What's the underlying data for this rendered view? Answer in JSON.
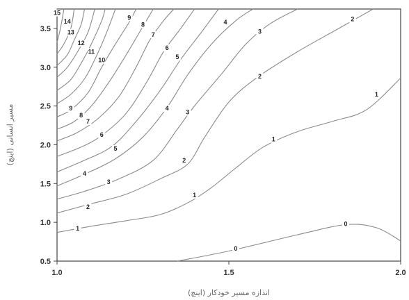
{
  "chart_data": {
    "type": "contour",
    "xlabel": "اندازه مسیر خودکار (اینچ)",
    "ylabel": "مسیر انسانی (اینچ)",
    "xlim": [
      1.0,
      2.0
    ],
    "ylim": [
      0.5,
      3.75
    ],
    "xticks": [
      "1.0",
      "1.5",
      "2.0"
    ],
    "yticks": [
      "0.5",
      "1.0",
      "1.5",
      "2.0",
      "2.5",
      "3.0",
      "3.5"
    ],
    "contours": [
      {
        "level": 0,
        "points": [
          [
            1.35,
            0.5
          ],
          [
            1.5,
            0.63
          ],
          [
            1.7,
            0.84
          ],
          [
            1.84,
            0.97
          ],
          [
            1.93,
            0.93
          ],
          [
            2.0,
            0.76
          ]
        ],
        "label_at": [
          [
            1.52,
            0.66
          ],
          [
            1.84,
            0.98
          ]
        ]
      },
      {
        "level": 1,
        "points": [
          [
            1.0,
            0.87
          ],
          [
            1.1,
            0.95
          ],
          [
            1.2,
            1.02
          ],
          [
            1.3,
            1.1
          ],
          [
            1.38,
            1.25
          ],
          [
            1.45,
            1.45
          ],
          [
            1.52,
            1.7
          ],
          [
            1.6,
            1.97
          ],
          [
            1.7,
            2.17
          ],
          [
            1.8,
            2.3
          ],
          [
            1.9,
            2.45
          ],
          [
            2.0,
            2.86
          ]
        ],
        "label_at": [
          [
            1.06,
            0.92
          ],
          [
            1.4,
            1.35
          ],
          [
            1.63,
            2.07
          ],
          [
            1.93,
            2.65
          ]
        ]
      },
      {
        "level": 2,
        "points": [
          [
            1.0,
            1.12
          ],
          [
            1.1,
            1.24
          ],
          [
            1.2,
            1.36
          ],
          [
            1.3,
            1.56
          ],
          [
            1.38,
            1.75
          ],
          [
            1.43,
            2.1
          ],
          [
            1.5,
            2.55
          ],
          [
            1.58,
            2.86
          ],
          [
            1.7,
            3.2
          ],
          [
            1.82,
            3.5
          ],
          [
            1.92,
            3.75
          ]
        ],
        "label_at": [
          [
            1.09,
            1.2
          ],
          [
            1.37,
            1.8
          ],
          [
            1.59,
            2.88
          ],
          [
            1.86,
            3.62
          ]
        ]
      },
      {
        "level": 3,
        "points": [
          [
            1.0,
            1.3
          ],
          [
            1.08,
            1.4
          ],
          [
            1.18,
            1.56
          ],
          [
            1.28,
            1.8
          ],
          [
            1.35,
            2.2
          ],
          [
            1.4,
            2.5
          ],
          [
            1.48,
            2.92
          ],
          [
            1.55,
            3.3
          ],
          [
            1.62,
            3.56
          ],
          [
            1.7,
            3.75
          ]
        ],
        "label_at": [
          [
            1.15,
            1.52
          ],
          [
            1.38,
            2.42
          ],
          [
            1.59,
            3.46
          ]
        ]
      },
      {
        "level": 4,
        "points": [
          [
            1.0,
            1.47
          ],
          [
            1.08,
            1.62
          ],
          [
            1.17,
            1.82
          ],
          [
            1.25,
            2.1
          ],
          [
            1.32,
            2.48
          ],
          [
            1.38,
            2.9
          ],
          [
            1.45,
            3.3
          ],
          [
            1.52,
            3.6
          ],
          [
            1.57,
            3.75
          ]
        ],
        "label_at": [
          [
            1.08,
            1.63
          ],
          [
            1.32,
            2.47
          ],
          [
            1.49,
            3.58
          ]
        ]
      },
      {
        "level": 5,
        "points": [
          [
            1.0,
            1.65
          ],
          [
            1.08,
            1.8
          ],
          [
            1.16,
            1.98
          ],
          [
            1.23,
            2.3
          ],
          [
            1.3,
            2.7
          ],
          [
            1.36,
            3.1
          ],
          [
            1.42,
            3.45
          ],
          [
            1.47,
            3.75
          ]
        ],
        "label_at": [
          [
            1.17,
            1.95
          ],
          [
            1.35,
            3.13
          ]
        ]
      },
      {
        "level": 6,
        "points": [
          [
            1.0,
            1.85
          ],
          [
            1.07,
            1.97
          ],
          [
            1.13,
            2.12
          ],
          [
            1.2,
            2.4
          ],
          [
            1.26,
            2.8
          ],
          [
            1.31,
            3.2
          ],
          [
            1.36,
            3.5
          ],
          [
            1.4,
            3.75
          ]
        ],
        "label_at": [
          [
            1.13,
            2.13
          ],
          [
            1.32,
            3.25
          ]
        ]
      },
      {
        "level": 7,
        "points": [
          [
            1.0,
            2.05
          ],
          [
            1.06,
            2.16
          ],
          [
            1.12,
            2.34
          ],
          [
            1.18,
            2.62
          ],
          [
            1.23,
            3.0
          ],
          [
            1.27,
            3.35
          ],
          [
            1.31,
            3.6
          ],
          [
            1.34,
            3.75
          ]
        ],
        "label_at": [
          [
            1.09,
            2.3
          ],
          [
            1.28,
            3.42
          ]
        ]
      },
      {
        "level": 8,
        "points": [
          [
            1.0,
            2.2
          ],
          [
            1.05,
            2.3
          ],
          [
            1.1,
            2.5
          ],
          [
            1.15,
            2.8
          ],
          [
            1.2,
            3.15
          ],
          [
            1.24,
            3.45
          ],
          [
            1.28,
            3.75
          ]
        ],
        "label_at": [
          [
            1.07,
            2.38
          ],
          [
            1.25,
            3.55
          ]
        ]
      },
      {
        "level": 9,
        "points": [
          [
            1.0,
            2.36
          ],
          [
            1.04,
            2.45
          ],
          [
            1.09,
            2.67
          ],
          [
            1.13,
            3.0
          ],
          [
            1.17,
            3.3
          ],
          [
            1.21,
            3.58
          ],
          [
            1.23,
            3.75
          ]
        ],
        "label_at": [
          [
            1.04,
            2.47
          ],
          [
            1.21,
            3.64
          ]
        ]
      },
      {
        "level": 10,
        "points": [
          [
            1.0,
            2.53
          ],
          [
            1.04,
            2.65
          ],
          [
            1.08,
            2.85
          ],
          [
            1.11,
            3.1
          ],
          [
            1.14,
            3.4
          ],
          [
            1.17,
            3.75
          ]
        ],
        "label_at": [
          [
            1.13,
            3.09
          ]
        ]
      },
      {
        "level": 11,
        "points": [
          [
            1.0,
            2.7
          ],
          [
            1.04,
            2.84
          ],
          [
            1.07,
            3.05
          ],
          [
            1.1,
            3.3
          ],
          [
            1.13,
            3.6
          ],
          [
            1.14,
            3.75
          ]
        ],
        "label_at": [
          [
            1.1,
            3.2
          ]
        ]
      },
      {
        "level": 12,
        "points": [
          [
            1.0,
            2.87
          ],
          [
            1.03,
            3.0
          ],
          [
            1.06,
            3.2
          ],
          [
            1.09,
            3.45
          ],
          [
            1.11,
            3.75
          ]
        ],
        "label_at": [
          [
            1.07,
            3.31
          ]
        ]
      },
      {
        "level": 13,
        "points": [
          [
            1.0,
            3.02
          ],
          [
            1.03,
            3.16
          ],
          [
            1.05,
            3.35
          ],
          [
            1.07,
            3.55
          ],
          [
            1.08,
            3.75
          ]
        ],
        "label_at": [
          [
            1.04,
            3.45
          ]
        ]
      },
      {
        "level": 14,
        "points": [
          [
            1.0,
            3.17
          ],
          [
            1.02,
            3.3
          ],
          [
            1.04,
            3.5
          ],
          [
            1.05,
            3.75
          ]
        ],
        "label_at": [
          [
            1.03,
            3.59
          ]
        ]
      },
      {
        "level": 15,
        "points": [
          [
            1.0,
            3.32
          ],
          [
            1.01,
            3.5
          ],
          [
            1.02,
            3.75
          ]
        ],
        "label_at": [
          [
            1.0,
            3.7
          ]
        ]
      }
    ]
  }
}
